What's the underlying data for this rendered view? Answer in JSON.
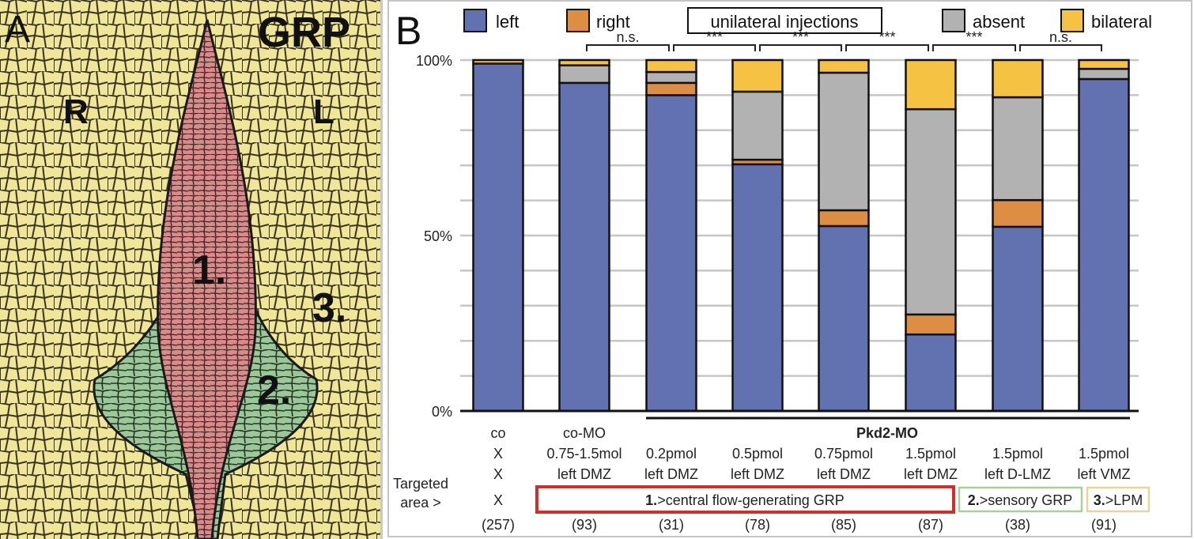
{
  "panel_a": {
    "panel_letter": "A",
    "title": "GRP",
    "side_right": "R",
    "side_left": "L",
    "region_labels": [
      "1.",
      "2.",
      "3."
    ],
    "colors": {
      "tissue": "#f0e69a",
      "central_grp": "#d98a8a",
      "sensory_grp": "#9cc79a",
      "cell_outline": "#2a2a1a"
    }
  },
  "panel_b": {
    "panel_letter": "B",
    "legend": [
      {
        "label": "left",
        "color": "#6271b0"
      },
      {
        "label": "right",
        "color": "#dd8e42"
      },
      {
        "label": "absent",
        "color": "#b3b2b3"
      },
      {
        "label": "bilateral",
        "color": "#f5c244"
      }
    ],
    "legend_box_label": "unilateral injections",
    "group_label": "Pkd2-MO",
    "row_header": "Targeted\narea >",
    "row_header_lines": [
      "Targeted",
      "area >"
    ],
    "columns": [
      {
        "line1": "co",
        "line2": "X",
        "line3": "X",
        "target": "X",
        "n": "(257)"
      },
      {
        "line1": "co-MO",
        "line2": "0.75-1.5mol",
        "line3": "left DMZ",
        "target": "",
        "n": "(93)"
      },
      {
        "line1": "",
        "line2": "0.2pmol",
        "line3": "left DMZ",
        "target": "",
        "n": "(31)"
      },
      {
        "line1": "",
        "line2": "0.5pmol",
        "line3": "left DMZ",
        "target": "",
        "n": "(78)"
      },
      {
        "line1": "",
        "line2": "0.75pmol",
        "line3": "left DMZ",
        "target": "",
        "n": "(85)"
      },
      {
        "line1": "",
        "line2": "1.5pmol",
        "line3": "left DMZ",
        "target": "",
        "n": "(87)"
      },
      {
        "line1": "",
        "line2": "1.5pmol",
        "line3": "left D-LMZ",
        "target": "",
        "n": "(38)"
      },
      {
        "line1": "",
        "line2": "1.5pmol",
        "line3": "left VMZ",
        "target": "",
        "n": "(91)"
      }
    ],
    "target_areas": [
      {
        "num": "1.",
        "text": ">central flow-generating GRP",
        "color": "#d0302c"
      },
      {
        "num": "2.",
        "text": ">sensory GRP",
        "color": "#a9d09a"
      },
      {
        "num": "3.",
        "text": ">LPM",
        "color": "#e2d79a"
      }
    ]
  },
  "chart_data": {
    "type": "bar",
    "stacked": true,
    "title": "",
    "xlabel": "",
    "ylabel": "",
    "ylim": [
      0,
      100
    ],
    "yticks": [
      0,
      10,
      20,
      30,
      40,
      50,
      60,
      70,
      80,
      90,
      100
    ],
    "ytick_labels": {
      "0": "0%",
      "50": "50%",
      "100": "100%"
    },
    "grid": true,
    "legend_position": "top",
    "categories": [
      "co",
      "co-MO 0.75-1.5mol left DMZ",
      "Pkd2-MO 0.2pmol left DMZ",
      "Pkd2-MO 0.5pmol left DMZ",
      "Pkd2-MO 0.75pmol left DMZ",
      "Pkd2-MO 1.5pmol left DMZ",
      "Pkd2-MO 1.5pmol left D-LMZ",
      "Pkd2-MO 1.5pmol left VMZ"
    ],
    "series": [
      {
        "name": "left",
        "color": "#6271b0",
        "values": [
          99,
          93.5,
          90,
          70.3,
          52.7,
          21.8,
          52.5,
          94.6
        ]
      },
      {
        "name": "right",
        "color": "#dd8e42",
        "values": [
          0,
          0,
          3.5,
          1.3,
          4.5,
          5.7,
          7.6,
          0
        ]
      },
      {
        "name": "absent",
        "color": "#b3b2b3",
        "values": [
          0,
          5,
          3.1,
          19.4,
          39.2,
          58.5,
          29.3,
          2.9
        ]
      },
      {
        "name": "bilateral",
        "color": "#f5c244",
        "values": [
          1,
          1.5,
          3.4,
          9,
          3.6,
          14,
          10.6,
          2.5
        ]
      }
    ],
    "significance": [
      {
        "from": 1,
        "to": 2,
        "label": "n.s."
      },
      {
        "from": 2,
        "to": 3,
        "label": "***"
      },
      {
        "from": 3,
        "to": 4,
        "label": "***"
      },
      {
        "from": 4,
        "to": 5,
        "label": "***"
      },
      {
        "from": 5,
        "to": 6,
        "label": "***"
      },
      {
        "from": 6,
        "to": 7,
        "label": "n.s."
      }
    ]
  }
}
